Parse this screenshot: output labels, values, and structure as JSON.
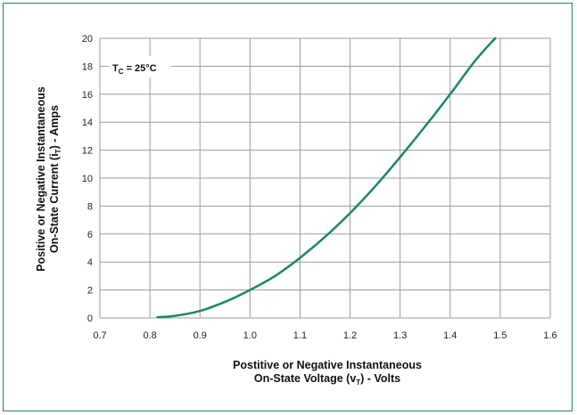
{
  "chart_data": {
    "type": "line",
    "xlim": [
      0.7,
      1.6
    ],
    "ylim": [
      0,
      20
    ],
    "x_ticks": [
      "0.7",
      "0.8",
      "0.9",
      "1.0",
      "1.1",
      "1.2",
      "1.3",
      "1.4",
      "1.5",
      "1.6"
    ],
    "y_ticks": [
      "0",
      "2",
      "4",
      "6",
      "8",
      "10",
      "12",
      "14",
      "16",
      "18",
      "20"
    ],
    "xlabel": {
      "line1": "Postitive or Negative Instantaneous",
      "line2_prefix": "On-State Voltage (v",
      "line2_sub": "T",
      "line2_suffix": ") - Volts"
    },
    "ylabel": {
      "line1": "Positive or Negative Instantaneous",
      "line2_prefix": "On-State Current (i",
      "line2_sub": "T",
      "line2_suffix": ") - Amps"
    },
    "annotation": {
      "prefix": "T",
      "sub": "C",
      "suffix": " = 25°C"
    },
    "grid": true,
    "line_color": "#1a8a5a",
    "series": [
      {
        "x": [
          0.815,
          0.85,
          0.9,
          0.95,
          1.0,
          1.05,
          1.1,
          1.15,
          1.2,
          1.25,
          1.3,
          1.35,
          1.4,
          1.45,
          1.49
        ],
        "y": [
          0.05,
          0.15,
          0.5,
          1.15,
          2.0,
          3.0,
          4.3,
          5.8,
          7.5,
          9.4,
          11.5,
          13.7,
          16.0,
          18.4,
          20.0
        ]
      }
    ]
  }
}
